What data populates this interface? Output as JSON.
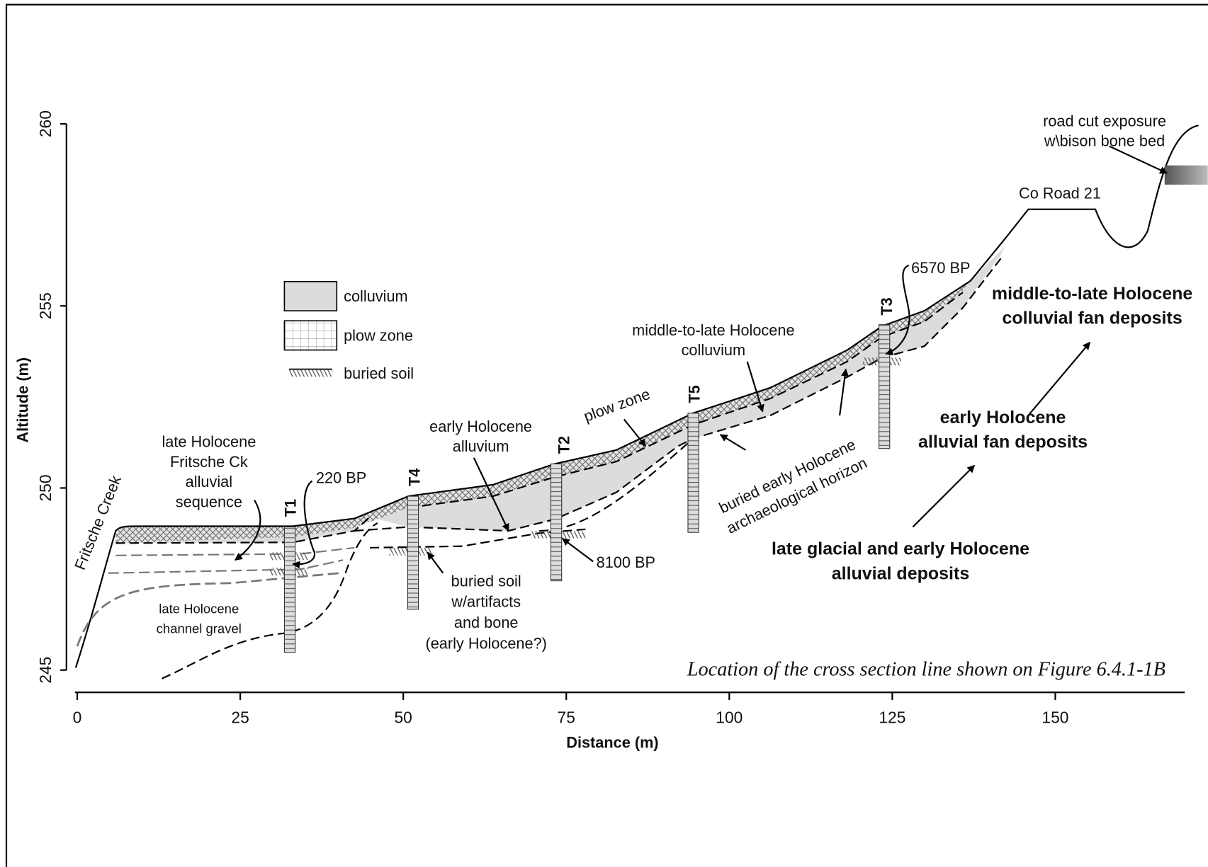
{
  "x_axis": {
    "label": "Distance (m)",
    "ticks": [
      0,
      25,
      50,
      75,
      100,
      125,
      150
    ]
  },
  "y_axis": {
    "label": "Altitude (m)",
    "ticks": [
      245,
      250,
      255,
      260
    ]
  },
  "legend": [
    "colluvium",
    "plow zone",
    "buried soil"
  ],
  "trenches": [
    "T1",
    "T4",
    "T2",
    "T5",
    "T3"
  ],
  "annotations": {
    "fritsche_creek": "Fritsche Creek",
    "late_holocene_sequence": [
      "late Holocene",
      "Fritsche Ck",
      "alluvial",
      "sequence"
    ],
    "bp_220": "220 BP",
    "channel_gravel": [
      "late Holocene",
      "channel gravel"
    ],
    "early_holocene_alluvium": [
      "early Holocene",
      "alluvium"
    ],
    "buried_soil_artifacts": [
      "buried soil",
      "w/artifacts",
      "and bone",
      "(early Holocene?)"
    ],
    "bp_8100": "8100 BP",
    "plow_zone": "plow zone",
    "colluvium": [
      "middle-to-late Holocene",
      "colluvium"
    ],
    "archaeological_horizon": [
      "buried early Holocene",
      "archaeological horizon"
    ],
    "bp_6570": "6570 BP",
    "co_road": "Co Road 21",
    "road_cut": [
      "road cut exposure",
      "w\\bison bone bed"
    ],
    "colluvial_fan": [
      "middle-to-late Holocene",
      "colluvial fan deposits"
    ],
    "alluvial_fan": [
      "early Holocene",
      "alluvial fan deposits"
    ],
    "late_glacial": [
      "late glacial and early Holocene",
      "alluvial deposits"
    ]
  },
  "caption": "Location of the cross section line shown on Figure 6.4.1-1B"
}
